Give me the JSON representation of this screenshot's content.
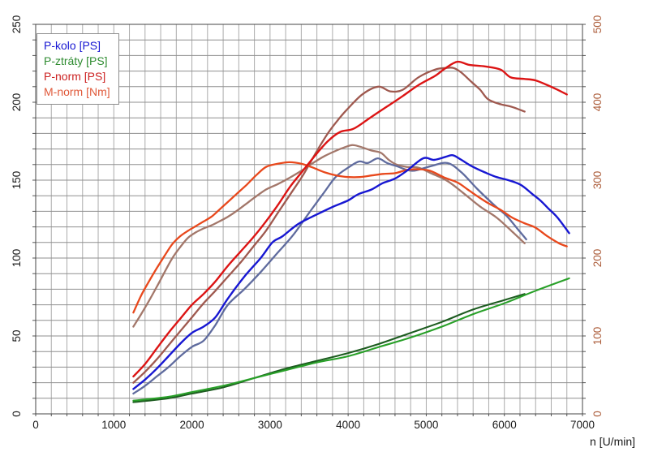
{
  "chart_data": {
    "type": "line",
    "title": "",
    "x_axis": {
      "title": "n [U/min]",
      "min": 0,
      "max": 7000,
      "major_step": 1000,
      "minor_step": 200,
      "label_color": "#1a1a1a"
    },
    "y_axis_left": {
      "units": "PS",
      "min": 0,
      "max": 250,
      "major_step": 50,
      "minor_step": 10,
      "label_color": "#1a1a1a"
    },
    "y_axis_right": {
      "units": "Nm",
      "min": 0,
      "max": 500,
      "major_step": 100,
      "minor_step": 20,
      "label_color": "#ad5f3d"
    },
    "grid": {
      "h_color": "#8f8f8f",
      "v_color": "#ababab",
      "border_color": "#444444",
      "tick_color": "#555555"
    },
    "legend": {
      "items": [
        {
          "label": "P-kolo [PS]",
          "color": "#1717d2"
        },
        {
          "label": "P-ztráty [PS]",
          "color": "#2e8b30"
        },
        {
          "label": "P-norm [PS]",
          "color": "#cc2222"
        },
        {
          "label": "M-norm [Nm]",
          "color": "#e0593a"
        }
      ]
    },
    "series": [
      {
        "id": "m-norm-run2",
        "name": "M-norm [Nm] run 2",
        "axis": "right",
        "color": "#a3776a",
        "width": 2.3,
        "points": [
          [
            1250,
            112
          ],
          [
            1350,
            128
          ],
          [
            1450,
            145
          ],
          [
            1550,
            163
          ],
          [
            1650,
            182
          ],
          [
            1750,
            200
          ],
          [
            1850,
            214
          ],
          [
            1950,
            226
          ],
          [
            2050,
            233
          ],
          [
            2150,
            238
          ],
          [
            2250,
            242
          ],
          [
            2350,
            247
          ],
          [
            2460,
            253
          ],
          [
            2580,
            261
          ],
          [
            2700,
            270
          ],
          [
            2820,
            279
          ],
          [
            2950,
            288
          ],
          [
            3100,
            295
          ],
          [
            3250,
            303
          ],
          [
            3400,
            312
          ],
          [
            3550,
            322
          ],
          [
            3700,
            331
          ],
          [
            3850,
            338
          ],
          [
            3950,
            342
          ],
          [
            4050,
            345
          ],
          [
            4150,
            343
          ],
          [
            4300,
            338
          ],
          [
            4420,
            335
          ],
          [
            4520,
            326
          ],
          [
            4620,
            320
          ],
          [
            4750,
            317
          ],
          [
            4900,
            316
          ],
          [
            5060,
            309
          ],
          [
            5270,
            299
          ],
          [
            5480,
            283
          ],
          [
            5690,
            266
          ],
          [
            5900,
            252
          ],
          [
            6100,
            234
          ],
          [
            6260,
            219
          ]
        ]
      },
      {
        "id": "p-norm-run2",
        "name": "P-norm [PS] run 2",
        "axis": "left",
        "color": "#9f594f",
        "width": 2.3,
        "points": [
          [
            1250,
            20
          ],
          [
            1400,
            27
          ],
          [
            1550,
            35
          ],
          [
            1700,
            44
          ],
          [
            1850,
            53
          ],
          [
            2000,
            62
          ],
          [
            2150,
            71
          ],
          [
            2300,
            79
          ],
          [
            2460,
            88
          ],
          [
            2620,
            97
          ],
          [
            2780,
            107
          ],
          [
            2940,
            117
          ],
          [
            3100,
            129
          ],
          [
            3260,
            141
          ],
          [
            3420,
            153
          ],
          [
            3580,
            167
          ],
          [
            3740,
            180
          ],
          [
            3860,
            188
          ],
          [
            3980,
            195
          ],
          [
            4180,
            205
          ],
          [
            4385,
            210
          ],
          [
            4540,
            207
          ],
          [
            4700,
            208
          ],
          [
            4900,
            216
          ],
          [
            5115,
            221
          ],
          [
            5250,
            222
          ],
          [
            5350,
            222
          ],
          [
            5450,
            219
          ],
          [
            5580,
            213
          ],
          [
            5690,
            208
          ],
          [
            5790,
            202
          ],
          [
            5930,
            199
          ],
          [
            6100,
            197
          ],
          [
            6260,
            194
          ]
        ]
      },
      {
        "id": "p-kolo-run2",
        "name": "P-kolo [PS] run 2",
        "axis": "left",
        "color": "#5f6b9e",
        "width": 2.3,
        "points": [
          [
            1250,
            13
          ],
          [
            1400,
            18
          ],
          [
            1550,
            24
          ],
          [
            1700,
            30
          ],
          [
            1850,
            37
          ],
          [
            2000,
            43
          ],
          [
            2150,
            47
          ],
          [
            2300,
            57
          ],
          [
            2460,
            70
          ],
          [
            2670,
            80
          ],
          [
            2880,
            91
          ],
          [
            3090,
            103
          ],
          [
            3300,
            115
          ],
          [
            3500,
            129
          ],
          [
            3690,
            142
          ],
          [
            3840,
            152
          ],
          [
            4000,
            158
          ],
          [
            4140,
            162
          ],
          [
            4250,
            161
          ],
          [
            4380,
            164
          ],
          [
            4500,
            161
          ],
          [
            4620,
            159
          ],
          [
            4820,
            156
          ],
          [
            5060,
            159
          ],
          [
            5270,
            161
          ],
          [
            5450,
            155
          ],
          [
            5660,
            144
          ],
          [
            5870,
            134
          ],
          [
            6030,
            127
          ],
          [
            6180,
            118
          ],
          [
            6280,
            112
          ]
        ]
      },
      {
        "id": "p-ztraty-run2",
        "name": "P-ztráty [PS] run 2",
        "axis": "left",
        "color": "#1d5c20",
        "width": 2.1,
        "points": [
          [
            1250,
            7.5
          ],
          [
            1700,
            10
          ],
          [
            2000,
            13
          ],
          [
            2400,
            17
          ],
          [
            2800,
            23
          ],
          [
            3200,
            29
          ],
          [
            3600,
            34
          ],
          [
            4000,
            39
          ],
          [
            4400,
            45
          ],
          [
            4800,
            52
          ],
          [
            5200,
            59
          ],
          [
            5600,
            67
          ],
          [
            6000,
            73
          ],
          [
            6260,
            77
          ]
        ]
      },
      {
        "id": "m-norm-run1",
        "name": "M-norm [Nm] run 1",
        "axis": "right",
        "color": "#e8481c",
        "width": 2.3,
        "points": [
          [
            1250,
            130
          ],
          [
            1350,
            152
          ],
          [
            1450,
            170
          ],
          [
            1550,
            187
          ],
          [
            1650,
            203
          ],
          [
            1750,
            218
          ],
          [
            1850,
            228
          ],
          [
            1950,
            235
          ],
          [
            2050,
            241
          ],
          [
            2150,
            247
          ],
          [
            2250,
            253
          ],
          [
            2350,
            262
          ],
          [
            2460,
            272
          ],
          [
            2580,
            283
          ],
          [
            2700,
            294
          ],
          [
            2820,
            306
          ],
          [
            2950,
            317
          ],
          [
            3100,
            321
          ],
          [
            3250,
            323
          ],
          [
            3400,
            321
          ],
          [
            3550,
            316
          ],
          [
            3700,
            310
          ],
          [
            3850,
            306
          ],
          [
            4000,
            304
          ],
          [
            4150,
            304
          ],
          [
            4300,
            306
          ],
          [
            4450,
            308
          ],
          [
            4600,
            309
          ],
          [
            4750,
            313
          ],
          [
            4900,
            314
          ],
          [
            5050,
            312
          ],
          [
            5240,
            303
          ],
          [
            5400,
            297
          ],
          [
            5530,
            288
          ],
          [
            5660,
            279
          ],
          [
            5800,
            270
          ],
          [
            5950,
            262
          ],
          [
            6100,
            252
          ],
          [
            6250,
            245
          ],
          [
            6400,
            239
          ],
          [
            6550,
            228
          ],
          [
            6700,
            219
          ],
          [
            6800,
            215
          ]
        ]
      },
      {
        "id": "p-norm-run1",
        "name": "P-norm [PS] run 1",
        "axis": "left",
        "color": "#dc1414",
        "width": 2.4,
        "points": [
          [
            1250,
            24
          ],
          [
            1400,
            32
          ],
          [
            1550,
            42
          ],
          [
            1700,
            52
          ],
          [
            1850,
            61
          ],
          [
            2000,
            70
          ],
          [
            2150,
            77
          ],
          [
            2300,
            85
          ],
          [
            2460,
            95
          ],
          [
            2620,
            104
          ],
          [
            2780,
            113
          ],
          [
            2940,
            123
          ],
          [
            3100,
            134
          ],
          [
            3260,
            146
          ],
          [
            3420,
            156
          ],
          [
            3580,
            166
          ],
          [
            3740,
            175
          ],
          [
            3900,
            181
          ],
          [
            4070,
            183
          ],
          [
            4280,
            190
          ],
          [
            4490,
            197
          ],
          [
            4700,
            204
          ],
          [
            4900,
            211
          ],
          [
            5115,
            217
          ],
          [
            5250,
            222
          ],
          [
            5400,
            226
          ],
          [
            5550,
            224
          ],
          [
            5750,
            223
          ],
          [
            5950,
            221
          ],
          [
            6080,
            216
          ],
          [
            6250,
            215
          ],
          [
            6400,
            214
          ],
          [
            6550,
            211
          ],
          [
            6680,
            208
          ],
          [
            6800,
            205
          ]
        ]
      },
      {
        "id": "p-kolo-run1",
        "name": "P-kolo [PS] run 1",
        "axis": "left",
        "color": "#1717d2",
        "width": 2.4,
        "points": [
          [
            1250,
            16
          ],
          [
            1400,
            22
          ],
          [
            1550,
            29
          ],
          [
            1700,
            37
          ],
          [
            1850,
            45
          ],
          [
            2000,
            52
          ],
          [
            2150,
            56
          ],
          [
            2300,
            62
          ],
          [
            2460,
            74
          ],
          [
            2670,
            88
          ],
          [
            2880,
            100
          ],
          [
            3030,
            110
          ],
          [
            3160,
            114
          ],
          [
            3365,
            122
          ],
          [
            3600,
            128
          ],
          [
            3810,
            133
          ],
          [
            4000,
            137
          ],
          [
            4130,
            141
          ],
          [
            4300,
            144
          ],
          [
            4440,
            148
          ],
          [
            4600,
            151
          ],
          [
            4750,
            156
          ],
          [
            4960,
            164
          ],
          [
            5100,
            163
          ],
          [
            5250,
            165
          ],
          [
            5340,
            166
          ],
          [
            5450,
            163
          ],
          [
            5580,
            159
          ],
          [
            5750,
            155
          ],
          [
            5900,
            152
          ],
          [
            6050,
            150
          ],
          [
            6210,
            147
          ],
          [
            6360,
            141
          ],
          [
            6460,
            137
          ],
          [
            6560,
            132
          ],
          [
            6680,
            126
          ],
          [
            6830,
            116
          ]
        ]
      },
      {
        "id": "p-ztraty-run1",
        "name": "P-ztráty [PS] run 1",
        "axis": "left",
        "color": "#28a028",
        "width": 2.1,
        "points": [
          [
            1250,
            8.5
          ],
          [
            1700,
            11
          ],
          [
            2000,
            14
          ],
          [
            2400,
            18
          ],
          [
            2800,
            23
          ],
          [
            3200,
            28
          ],
          [
            3600,
            33
          ],
          [
            4000,
            37
          ],
          [
            4400,
            43
          ],
          [
            4800,
            49
          ],
          [
            5200,
            56
          ],
          [
            5600,
            64
          ],
          [
            6000,
            71
          ],
          [
            6400,
            79
          ],
          [
            6830,
            87
          ]
        ]
      }
    ]
  }
}
